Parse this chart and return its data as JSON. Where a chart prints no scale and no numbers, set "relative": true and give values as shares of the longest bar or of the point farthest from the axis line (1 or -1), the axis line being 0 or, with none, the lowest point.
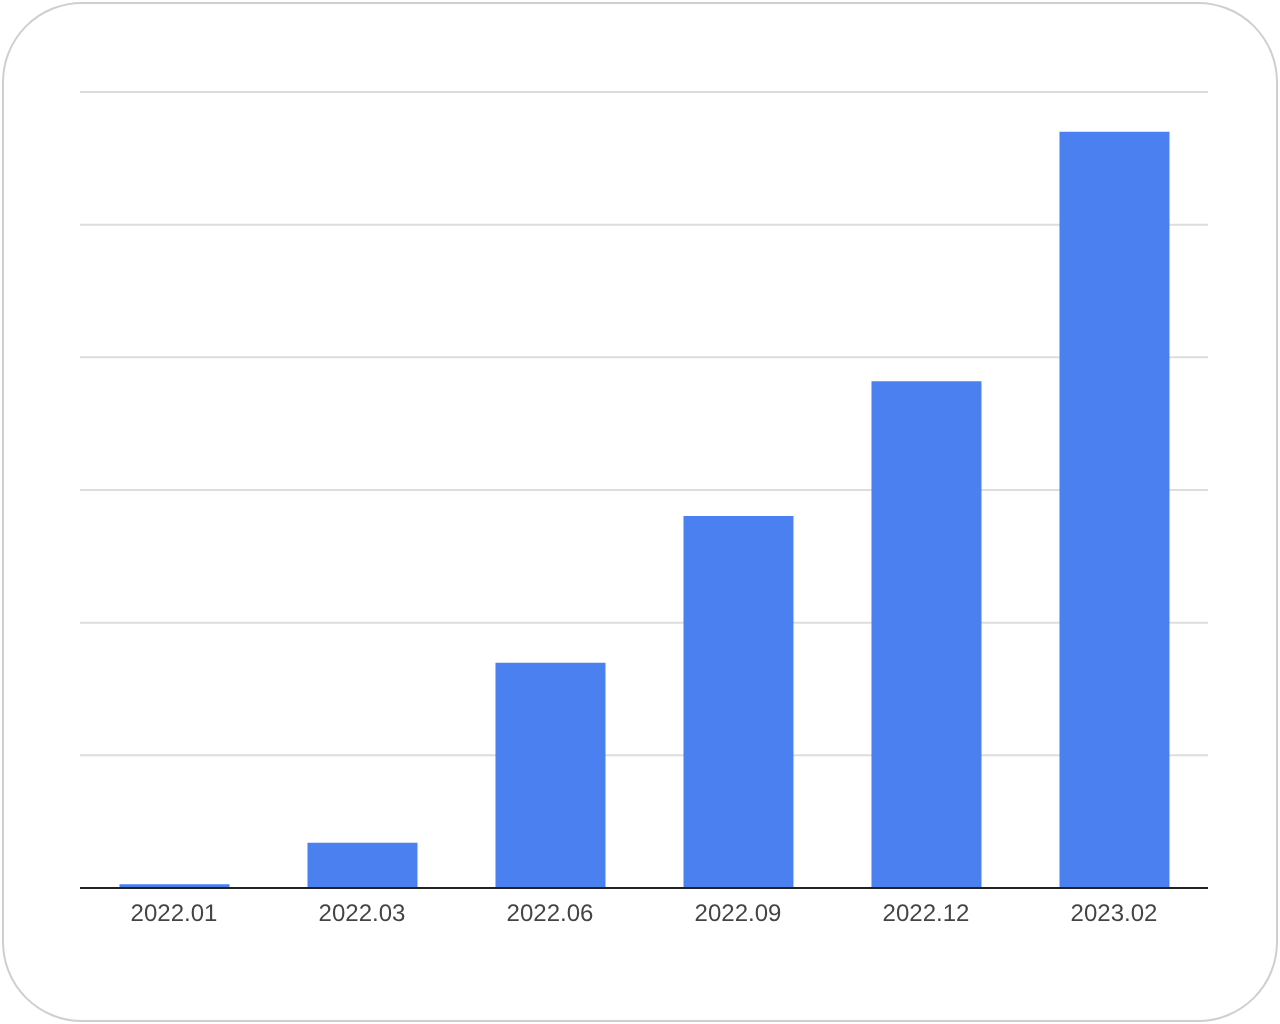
{
  "chart_data": {
    "type": "bar",
    "relative": true,
    "categories": [
      "2022.01",
      "2022.03",
      "2022.06",
      "2022.09",
      "2022.12",
      "2023.02"
    ],
    "values": [
      0.005,
      0.06,
      0.298,
      0.492,
      0.67,
      1
    ],
    "color": "#4a80f0",
    "grid": "y"
  }
}
